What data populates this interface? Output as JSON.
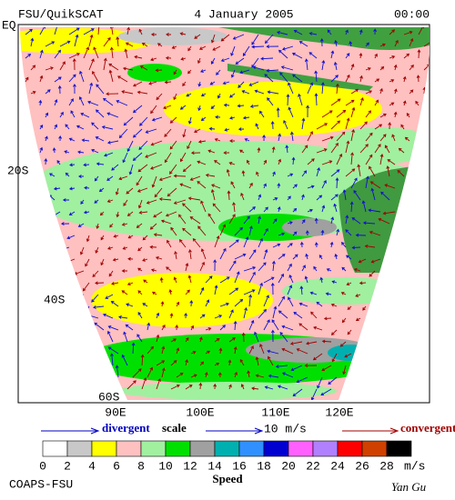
{
  "header": {
    "source": "FSU/QuikSCAT",
    "date": "4 January 2005",
    "time": "00:00"
  },
  "map": {
    "lat_labels": [
      "EQ",
      "20S",
      "40S",
      "60S"
    ],
    "lon_labels": [
      "90E",
      "100E",
      "110E",
      "120E"
    ]
  },
  "scale": {
    "divergent": "divergent",
    "label": "scale",
    "magnitude": "10 m/s",
    "convergent": "convergent"
  },
  "colorbar": {
    "labels": [
      "0",
      "2",
      "4",
      "6",
      "8",
      "10",
      "12",
      "14",
      "16",
      "18",
      "20",
      "22",
      "24",
      "26",
      "28"
    ],
    "unit": "m/s",
    "title": "Speed",
    "colors": [
      "#ffffff",
      "#c8c8c8",
      "#ffff00",
      "#ffc0c0",
      "#a0f0a0",
      "#00e000",
      "#a0a0a0",
      "#00b0b0",
      "#3090ff",
      "#0000d0",
      "#ff60ff",
      "#b080ff",
      "#ff0000",
      "#d04000",
      "#000000"
    ]
  },
  "footer": {
    "institution": "COAPS-FSU",
    "author": "Yan Gu"
  }
}
